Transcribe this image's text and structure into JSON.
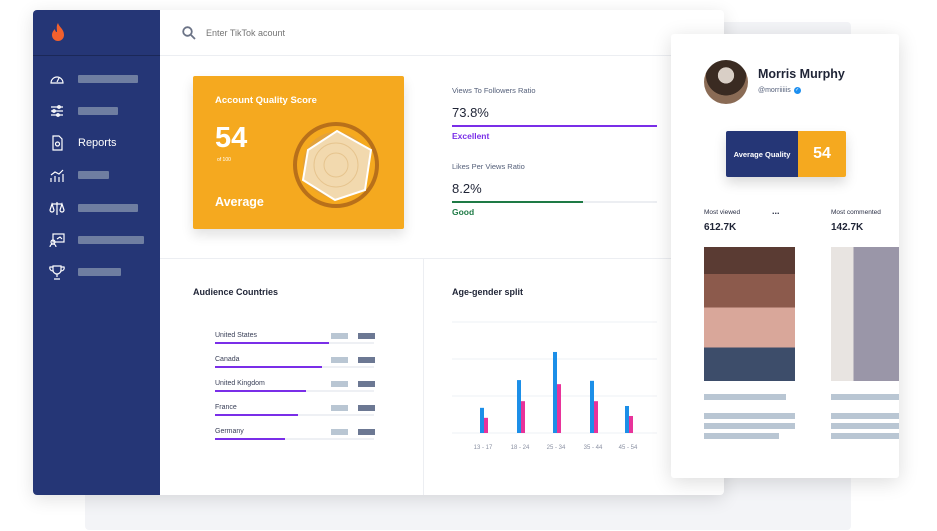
{
  "search": {
    "placeholder": "Enter TikTok acount"
  },
  "sidebar": {
    "items": [
      {
        "icon": "dashboard-gauge-icon",
        "label": ""
      },
      {
        "icon": "sliders-icon",
        "label": ""
      },
      {
        "icon": "report-document-icon",
        "label": "Reports"
      },
      {
        "icon": "analytics-chart-icon",
        "label": ""
      },
      {
        "icon": "scale-balance-icon",
        "label": ""
      },
      {
        "icon": "presentation-icon",
        "label": ""
      },
      {
        "icon": "trophy-icon",
        "label": ""
      }
    ]
  },
  "quality_card": {
    "title": "Account Quality Score",
    "score": "54",
    "of": "of 100",
    "rating": "Average",
    "color": "#F5A91F"
  },
  "metrics": [
    {
      "label": "Views To Followers Ratio",
      "value": "73.8%",
      "status": "Excellent",
      "fill": 1.0,
      "color": "#7A2EE8"
    },
    {
      "label": "Likes Per Views Ratio",
      "value": "8.2%",
      "status": "Good",
      "fill": 0.64,
      "color": "#1E7A45"
    }
  ],
  "audience": {
    "title": "Audience Countries",
    "countries": [
      {
        "name": "United States",
        "fill": 0.72
      },
      {
        "name": "Canada",
        "fill": 0.67
      },
      {
        "name": "United Kingdom",
        "fill": 0.57
      },
      {
        "name": "France",
        "fill": 0.52
      },
      {
        "name": "Germany",
        "fill": 0.44
      }
    ]
  },
  "chart_data": {
    "type": "bar",
    "title": "Age-gender split",
    "categories": [
      "13 - 17",
      "18 - 24",
      "25 - 34",
      "35 - 44",
      "45 - 54"
    ],
    "series": [
      {
        "values": [
          0.68,
          1.43,
          2.19,
          1.41,
          0.73
        ],
        "color": "#1C8FE8"
      },
      {
        "values": [
          0.41,
          0.86,
          1.32,
          0.86,
          0.46
        ],
        "color": "#E8339A"
      }
    ],
    "ylim": [
      0,
      3
    ],
    "grid": true
  },
  "profile": {
    "name": "Morris Murphy",
    "handle": "@morriiiiis",
    "verified": true,
    "quality_label": "Average Quality",
    "quality_score": "54",
    "most_viewed_label": "Most viewed",
    "most_viewed": "612.7K",
    "more": "...",
    "most_commented_label": "Most commented",
    "most_commented": "142.7K"
  },
  "colors": {
    "sidebar": "#253676",
    "accent": "#F5A91F",
    "logo": "#F2602D"
  }
}
